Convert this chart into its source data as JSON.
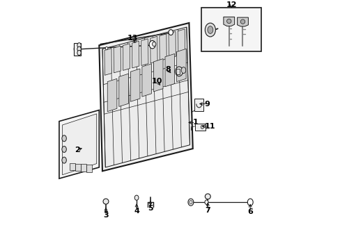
{
  "bg": "#ffffff",
  "lc": "#1a1a1a",
  "fig_w": 4.89,
  "fig_h": 3.6,
  "dpi": 100,
  "labels": {
    "1": [
      0.565,
      0.495,
      0.6,
      0.495
    ],
    "2": [
      0.175,
      0.615,
      0.155,
      0.615
    ],
    "3": [
      0.245,
      0.87,
      0.245,
      0.9
    ],
    "4": [
      0.37,
      0.855,
      0.37,
      0.89
    ],
    "5": [
      0.43,
      0.855,
      0.43,
      0.888
    ],
    "6": [
      0.82,
      0.87,
      0.82,
      0.905
    ],
    "7": [
      0.66,
      0.868,
      0.66,
      0.902
    ],
    "8": [
      0.505,
      0.35,
      0.49,
      0.33
    ],
    "9": [
      0.64,
      0.46,
      0.675,
      0.46
    ],
    "10": [
      0.45,
      0.4,
      0.44,
      0.378
    ],
    "11": [
      0.65,
      0.53,
      0.685,
      0.53
    ],
    "12": [
      0.755,
      0.068,
      0.755,
      0.048
    ],
    "13": [
      0.355,
      0.148,
      0.34,
      0.118
    ]
  }
}
